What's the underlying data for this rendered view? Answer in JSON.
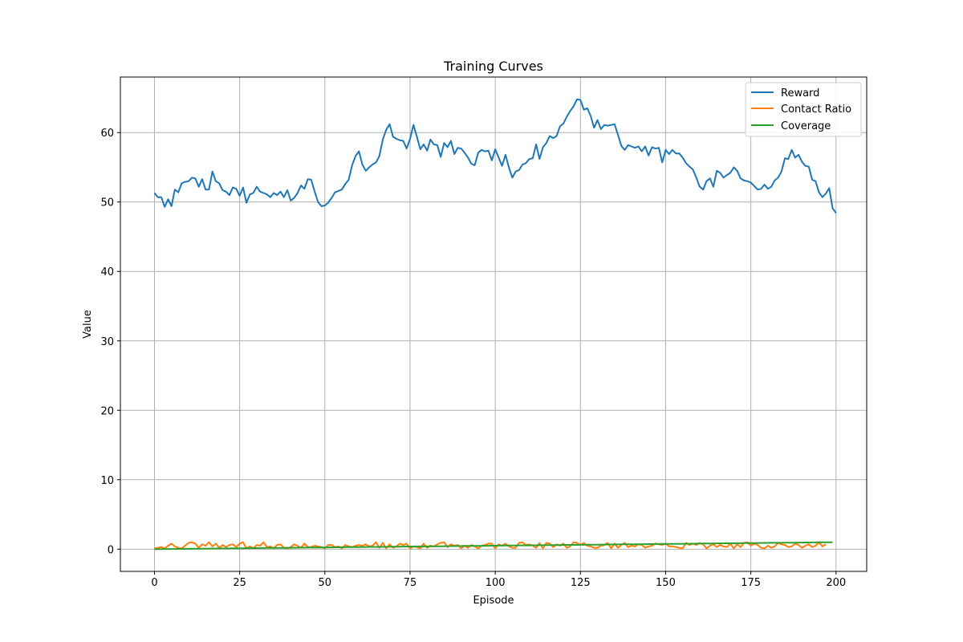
{
  "chart_data": {
    "type": "line",
    "title": "Training Curves",
    "xlabel": "Episode",
    "ylabel": "Value",
    "xlim": [
      -10,
      209
    ],
    "ylim": [
      -3.2,
      68.0
    ],
    "xticks": [
      0,
      25,
      50,
      75,
      100,
      125,
      150,
      175,
      200
    ],
    "yticks": [
      0,
      10,
      20,
      30,
      40,
      50,
      60
    ],
    "grid": true,
    "legend_position": "top-right",
    "series": [
      {
        "name": "Reward",
        "color": "#1f77b4",
        "x_start": 0,
        "x_step": 1,
        "values": [
          51.3,
          50.7,
          50.7,
          49.3,
          50.4,
          49.4,
          51.8,
          51.4,
          52.7,
          52.9,
          53.0,
          53.5,
          53.4,
          52.2,
          53.3,
          51.8,
          51.8,
          54.4,
          53.0,
          52.7,
          51.7,
          51.5,
          51.0,
          52.1,
          51.9,
          50.9,
          52.1,
          49.9,
          51.1,
          51.3,
          52.2,
          51.5,
          51.3,
          51.1,
          50.7,
          51.3,
          51.0,
          51.5,
          50.7,
          51.7,
          50.2,
          50.6,
          51.3,
          52.4,
          51.9,
          53.3,
          53.2,
          51.5,
          50.0,
          49.4,
          49.5,
          49.9,
          50.6,
          51.4,
          51.6,
          51.8,
          52.6,
          53.2,
          55.3,
          56.6,
          57.3,
          55.4,
          54.5,
          55.0,
          55.4,
          55.7,
          56.6,
          59.0,
          60.4,
          61.2,
          59.4,
          59.1,
          58.9,
          58.8,
          57.7,
          59.1,
          61.1,
          59.4,
          57.6,
          58.3,
          57.4,
          59.0,
          58.3,
          58.2,
          56.5,
          58.5,
          57.9,
          58.8,
          56.9,
          57.8,
          57.7,
          57.1,
          56.4,
          55.5,
          55.3,
          57.1,
          57.5,
          57.3,
          57.4,
          56.0,
          57.6,
          56.4,
          55.2,
          56.8,
          55.0,
          53.5,
          54.4,
          54.6,
          55.4,
          55.6,
          56.2,
          56.3,
          58.3,
          56.2,
          57.9,
          58.5,
          59.5,
          59.2,
          59.5,
          60.9,
          61.3,
          62.3,
          63.1,
          63.8,
          64.8,
          64.7,
          63.3,
          63.5,
          62.4,
          60.7,
          61.8,
          60.5,
          61.1,
          61.0,
          61.1,
          61.2,
          59.7,
          58.1,
          57.5,
          58.2,
          58.0,
          57.8,
          58.0,
          57.3,
          58.0,
          56.7,
          57.9,
          57.7,
          57.8,
          55.7,
          57.5,
          56.9,
          57.5,
          57.0,
          57.0,
          56.4,
          55.6,
          55.1,
          54.7,
          53.5,
          52.2,
          51.8,
          53.0,
          53.4,
          52.2,
          54.5,
          54.2,
          53.5,
          53.9,
          54.2,
          55.0,
          54.5,
          53.4,
          53.1,
          53.0,
          52.8,
          52.3,
          51.8,
          51.9,
          52.5,
          51.9,
          52.2,
          53.1,
          53.5,
          54.4,
          56.3,
          56.2,
          57.5,
          56.4,
          56.8,
          55.8,
          55.2,
          55.1,
          53.2,
          53.0,
          51.4,
          50.7,
          51.2,
          52.0,
          49.1,
          48.4
        ]
      },
      {
        "name": "Contact Ratio",
        "color": "#ff7f0e",
        "x_start": 0,
        "x_step": 1,
        "values": [
          0.1,
          0.2,
          0.3,
          0.1,
          0.5,
          0.8,
          0.4,
          0.2,
          0.1,
          0.5,
          0.9,
          1.0,
          0.8,
          0.2,
          0.7,
          0.5,
          1.0,
          0.4,
          0.8,
          0.2,
          0.6,
          0.3,
          0.6,
          0.7,
          0.3,
          0.8,
          1.0,
          0.1,
          0.4,
          0.1,
          0.6,
          0.5,
          1.0,
          0.3,
          0.4,
          0.1,
          0.6,
          0.7,
          0.2,
          0.1,
          0.3,
          0.7,
          0.5,
          0.2,
          0.8,
          0.3,
          0.3,
          0.5,
          0.4,
          0.3,
          0.1,
          0.6,
          0.6,
          0.3,
          0.4,
          0.1,
          0.6,
          0.4,
          0.3,
          0.5,
          0.6,
          0.5,
          0.7,
          0.4,
          0.5,
          1.0,
          0.2,
          0.9,
          0.1,
          0.7,
          0.2,
          0.4,
          0.8,
          0.6,
          0.8,
          0.1,
          0.4,
          0.3,
          0.1,
          0.8,
          0.2,
          0.5,
          0.4,
          0.7,
          0.9,
          1.0,
          0.3,
          0.7,
          0.5,
          0.6,
          0.1,
          0.5,
          0.2,
          0.6,
          0.4,
          0.1,
          0.5,
          0.6,
          0.8,
          0.8,
          0.1,
          0.7,
          0.5,
          0.8,
          0.4,
          0.2,
          0.2,
          0.9,
          1.0,
          0.6,
          0.7,
          0.5,
          0.2,
          0.9,
          0.1,
          0.9,
          0.8,
          0.3,
          0.7,
          0.5,
          0.8,
          0.2,
          0.4,
          1.0,
          0.9,
          0.6,
          0.9,
          0.5,
          0.4,
          0.2,
          0.2,
          0.5,
          0.6,
          0.9,
          0.1,
          0.8,
          0.2,
          0.6,
          0.9,
          0.3,
          0.5,
          0.4,
          0.7,
          0.6,
          0.2,
          0.4,
          0.5,
          0.8,
          0.7,
          0.6,
          0.8,
          0.4,
          0.4,
          0.3,
          0.2,
          0.1,
          0.9,
          0.6,
          0.8,
          0.6,
          0.9,
          0.7,
          0.1,
          0.5,
          0.7,
          0.3,
          0.6,
          0.4,
          0.3,
          0.8,
          0.1,
          0.7,
          0.3,
          0.9,
          1.0,
          0.5,
          0.8,
          0.6,
          0.2,
          0.1,
          0.5,
          0.2,
          0.4,
          0.9,
          0.7,
          0.6,
          0.3,
          0.4,
          0.8,
          0.6,
          0.2,
          0.5,
          0.7,
          0.3,
          0.5,
          1.0,
          0.4,
          0.7
        ]
      },
      {
        "name": "Coverage",
        "color": "#2ca02c",
        "x_start": 0,
        "x_step": 1,
        "values": [
          0.0,
          0.01,
          0.01,
          0.02,
          0.02,
          0.03,
          0.03,
          0.04,
          0.04,
          0.05,
          0.05,
          0.06,
          0.06,
          0.07,
          0.07,
          0.08,
          0.08,
          0.09,
          0.09,
          0.1,
          0.1,
          0.11,
          0.11,
          0.12,
          0.12,
          0.13,
          0.13,
          0.14,
          0.14,
          0.15,
          0.15,
          0.16,
          0.16,
          0.17,
          0.17,
          0.18,
          0.18,
          0.19,
          0.19,
          0.2,
          0.2,
          0.21,
          0.21,
          0.22,
          0.22,
          0.23,
          0.23,
          0.24,
          0.24,
          0.25,
          0.25,
          0.26,
          0.26,
          0.27,
          0.27,
          0.28,
          0.28,
          0.29,
          0.29,
          0.3,
          0.3,
          0.31,
          0.31,
          0.32,
          0.32,
          0.33,
          0.33,
          0.34,
          0.34,
          0.35,
          0.35,
          0.36,
          0.36,
          0.37,
          0.37,
          0.38,
          0.38,
          0.39,
          0.39,
          0.4,
          0.4,
          0.41,
          0.41,
          0.42,
          0.42,
          0.43,
          0.43,
          0.44,
          0.44,
          0.45,
          0.45,
          0.46,
          0.46,
          0.47,
          0.47,
          0.48,
          0.48,
          0.49,
          0.49,
          0.5,
          0.5,
          0.51,
          0.51,
          0.52,
          0.52,
          0.53,
          0.53,
          0.54,
          0.54,
          0.55,
          0.55,
          0.56,
          0.56,
          0.57,
          0.57,
          0.58,
          0.58,
          0.59,
          0.59,
          0.6,
          0.6,
          0.61,
          0.61,
          0.62,
          0.62,
          0.63,
          0.63,
          0.64,
          0.64,
          0.65,
          0.65,
          0.66,
          0.66,
          0.67,
          0.67,
          0.68,
          0.68,
          0.69,
          0.69,
          0.7,
          0.7,
          0.71,
          0.71,
          0.72,
          0.72,
          0.73,
          0.73,
          0.74,
          0.74,
          0.75,
          0.75,
          0.76,
          0.76,
          0.77,
          0.77,
          0.78,
          0.78,
          0.79,
          0.79,
          0.8,
          0.8,
          0.81,
          0.81,
          0.82,
          0.82,
          0.83,
          0.83,
          0.84,
          0.84,
          0.85,
          0.85,
          0.86,
          0.86,
          0.87,
          0.87,
          0.88,
          0.88,
          0.89,
          0.89,
          0.9,
          0.9,
          0.91,
          0.91,
          0.92,
          0.92,
          0.93,
          0.93,
          0.94,
          0.94,
          0.95,
          0.95,
          0.96,
          0.96,
          0.97,
          0.97,
          0.98,
          0.98,
          0.99,
          0.99,
          1.0
        ]
      }
    ]
  }
}
